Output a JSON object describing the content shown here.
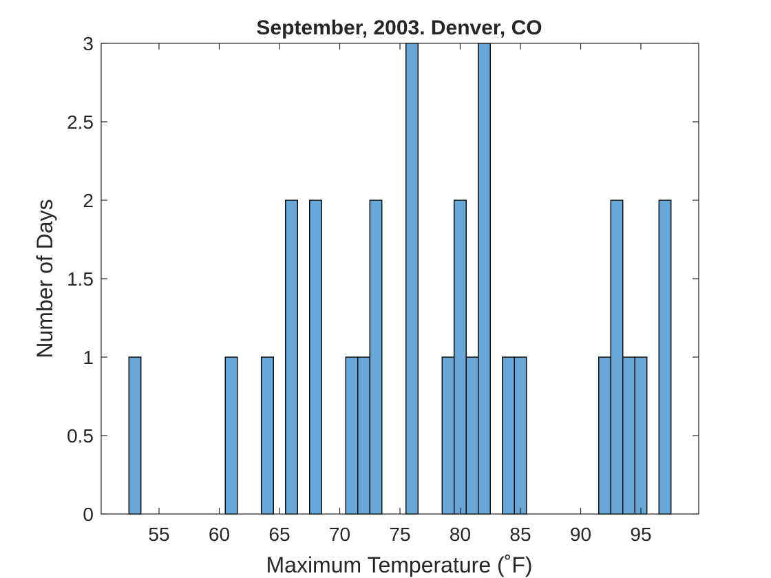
{
  "chart_data": {
    "type": "bar",
    "title": "September, 2003. Denver, CO",
    "xlabel": "Maximum Temperature (˚F)",
    "ylabel": "Number of Days",
    "xlim": [
      50.2,
      99.8
    ],
    "ylim": [
      0,
      3
    ],
    "xticks": [
      55,
      60,
      65,
      70,
      75,
      80,
      85,
      90,
      95
    ],
    "yticks": [
      0,
      0.5,
      1,
      1.5,
      2,
      2.5,
      3
    ],
    "bin_width": 1,
    "bars": [
      {
        "x": 53,
        "count": 1
      },
      {
        "x": 61,
        "count": 1
      },
      {
        "x": 64,
        "count": 1
      },
      {
        "x": 66,
        "count": 2
      },
      {
        "x": 68,
        "count": 2
      },
      {
        "x": 71,
        "count": 1
      },
      {
        "x": 72,
        "count": 1
      },
      {
        "x": 73,
        "count": 2
      },
      {
        "x": 76,
        "count": 3
      },
      {
        "x": 79,
        "count": 1
      },
      {
        "x": 80,
        "count": 2
      },
      {
        "x": 81,
        "count": 1
      },
      {
        "x": 82,
        "count": 3
      },
      {
        "x": 84,
        "count": 1
      },
      {
        "x": 85,
        "count": 1
      },
      {
        "x": 92,
        "count": 1
      },
      {
        "x": 93,
        "count": 2
      },
      {
        "x": 94,
        "count": 1
      },
      {
        "x": 95,
        "count": 1
      },
      {
        "x": 97,
        "count": 2
      }
    ],
    "grid": false,
    "bar_color": "#67a8d8"
  }
}
